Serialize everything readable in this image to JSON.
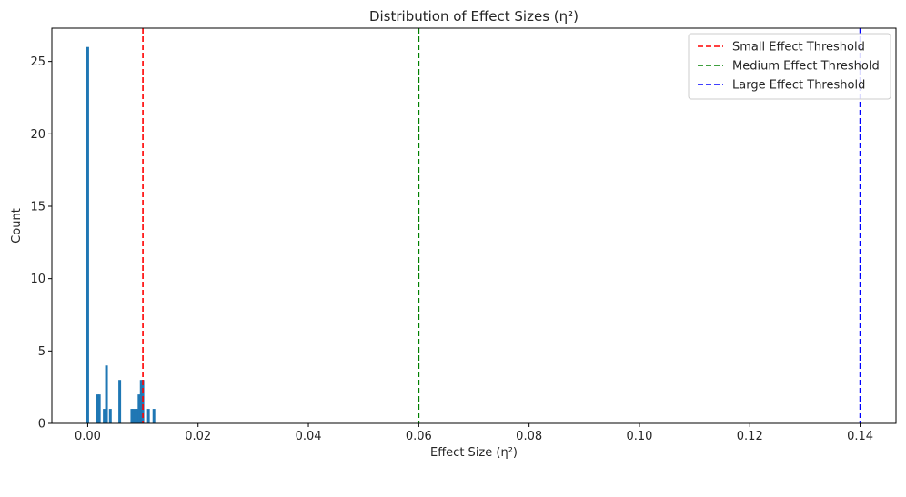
{
  "chart_data": {
    "type": "bar",
    "title": "Distribution of Effect Sizes (η²)",
    "xlabel": "Effect Size (η²)",
    "ylabel": "Count",
    "xlim": [
      -0.0065,
      0.1465
    ],
    "ylim": [
      0,
      27.3
    ],
    "x_ticks": [
      0.0,
      0.02,
      0.04,
      0.06,
      0.08,
      0.1,
      0.12,
      0.14
    ],
    "x_tick_labels": [
      "0.00",
      "0.02",
      "0.04",
      "0.06",
      "0.08",
      "0.10",
      "0.12",
      "0.14"
    ],
    "y_ticks": [
      0,
      5,
      10,
      15,
      20,
      25
    ],
    "y_tick_labels": [
      "0",
      "5",
      "10",
      "15",
      "20",
      "25"
    ],
    "bar_color": "#1f77b4",
    "bars": [
      {
        "x": 0.0,
        "count": 26
      },
      {
        "x": 0.0018,
        "count": 2
      },
      {
        "x": 0.0021,
        "count": 2
      },
      {
        "x": 0.003,
        "count": 1
      },
      {
        "x": 0.0034,
        "count": 4
      },
      {
        "x": 0.0041,
        "count": 1
      },
      {
        "x": 0.0058,
        "count": 3
      },
      {
        "x": 0.008,
        "count": 1
      },
      {
        "x": 0.0083,
        "count": 1
      },
      {
        "x": 0.0087,
        "count": 1
      },
      {
        "x": 0.009,
        "count": 1
      },
      {
        "x": 0.0093,
        "count": 2
      },
      {
        "x": 0.0097,
        "count": 3
      },
      {
        "x": 0.01,
        "count": 3
      },
      {
        "x": 0.011,
        "count": 1
      },
      {
        "x": 0.012,
        "count": 1
      }
    ],
    "thresholds": [
      {
        "name": "Small Effect Threshold",
        "x": 0.01,
        "color": "#ff0000"
      },
      {
        "name": "Medium Effect Threshold",
        "x": 0.06,
        "color": "#008000"
      },
      {
        "name": "Large Effect Threshold",
        "x": 0.14,
        "color": "#0000ff"
      }
    ],
    "legend_position": "top-right",
    "grid": false
  }
}
